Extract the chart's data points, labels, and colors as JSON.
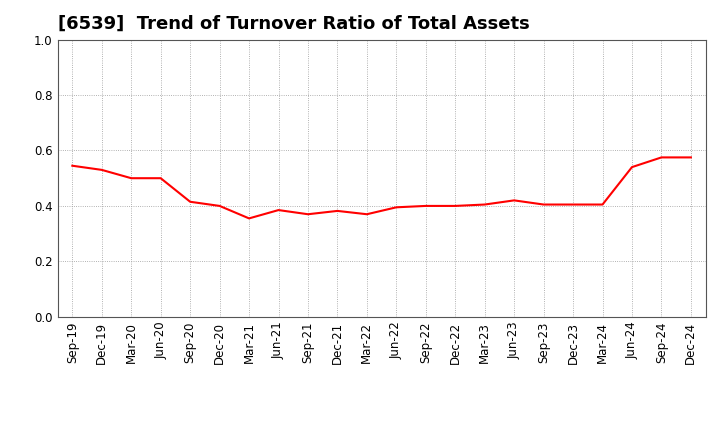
{
  "title": "[6539]  Trend of Turnover Ratio of Total Assets",
  "x_labels": [
    "Sep-19",
    "Dec-19",
    "Mar-20",
    "Jun-20",
    "Sep-20",
    "Dec-20",
    "Mar-21",
    "Jun-21",
    "Sep-21",
    "Dec-21",
    "Mar-22",
    "Jun-22",
    "Sep-22",
    "Dec-22",
    "Mar-23",
    "Jun-23",
    "Sep-23",
    "Dec-23",
    "Mar-24",
    "Jun-24",
    "Sep-24",
    "Dec-24"
  ],
  "y_values": [
    0.545,
    0.53,
    0.5,
    0.5,
    0.415,
    0.4,
    0.355,
    0.385,
    0.37,
    0.382,
    0.37,
    0.395,
    0.4,
    0.4,
    0.405,
    0.42,
    0.405,
    0.405,
    0.405,
    0.54,
    0.575,
    0.575
  ],
  "line_color": "#FF0000",
  "line_width": 1.5,
  "ylim": [
    0.0,
    1.0
  ],
  "yticks": [
    0.0,
    0.2,
    0.4,
    0.6,
    0.8,
    1.0
  ],
  "grid_color": "#999999",
  "background_color": "#ffffff",
  "title_fontsize": 13,
  "tick_fontsize": 8.5
}
